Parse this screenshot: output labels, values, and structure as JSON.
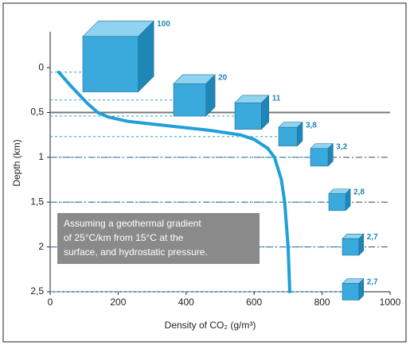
{
  "chart_data": {
    "type": "line",
    "xlabel": "Density of CO₂ (g/m³)",
    "ylabel": "Depth (km)",
    "annotation": [
      "Assuming a geothermal gradient",
      "of 25°C/km from 15°C at the",
      "surface, and hydrostatic pressure."
    ],
    "x": [
      25,
      60,
      110,
      140,
      170,
      230,
      350,
      470,
      560,
      600,
      640,
      660,
      680,
      690,
      700,
      705
    ],
    "y": [
      0.05,
      0.2,
      0.4,
      0.5,
      0.55,
      0.6,
      0.65,
      0.7,
      0.75,
      0.8,
      0.9,
      1.0,
      1.25,
      1.5,
      2.0,
      2.5
    ],
    "color": "#1fa0d8",
    "xlim": [
      0,
      1000
    ],
    "xticks": [
      0,
      200,
      400,
      600,
      800,
      1000
    ],
    "ylim": [
      2.5,
      -0.4
    ],
    "yticks": [
      0,
      {
        "value": 0.5,
        "label": "0,5"
      },
      1,
      {
        "value": 1.5,
        "label": "1,5"
      },
      2,
      {
        "value": 2.5,
        "label": "2,5"
      }
    ],
    "cubes": {
      "depths": [
        0.05,
        0.36,
        0.54,
        0.77,
        1.0,
        1.5,
        2.0,
        2.5
      ],
      "values": [
        100,
        20,
        11,
        3.8,
        3.2,
        2.8,
        2.7,
        2.7
      ],
      "value_labels": [
        "100",
        "20",
        "11",
        "3,8",
        "3,2",
        "2,8",
        "2,7",
        "2,7"
      ]
    }
  }
}
